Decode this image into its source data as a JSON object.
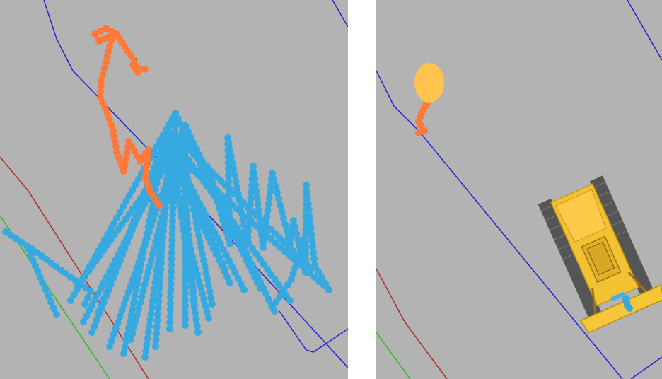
{
  "views": {
    "left": {
      "name": "trajectory-overview"
    },
    "right": {
      "name": "dozer-view"
    }
  },
  "colors": {
    "background": "#b3b3b3",
    "separator": "#ffffff",
    "boundary_blue": "#2323d6",
    "boundary_red": "#b02a2a",
    "boundary_green": "#22c022",
    "path_orange": "#ff7a3a",
    "path_blue": "#36a9e1",
    "target_marker": "#ffc44d",
    "dozer_body": "#f2c232",
    "dozer_track": "#555555"
  },
  "icons": {
    "dozer": "bulldozer-icon",
    "target": "target-marker-icon"
  }
}
